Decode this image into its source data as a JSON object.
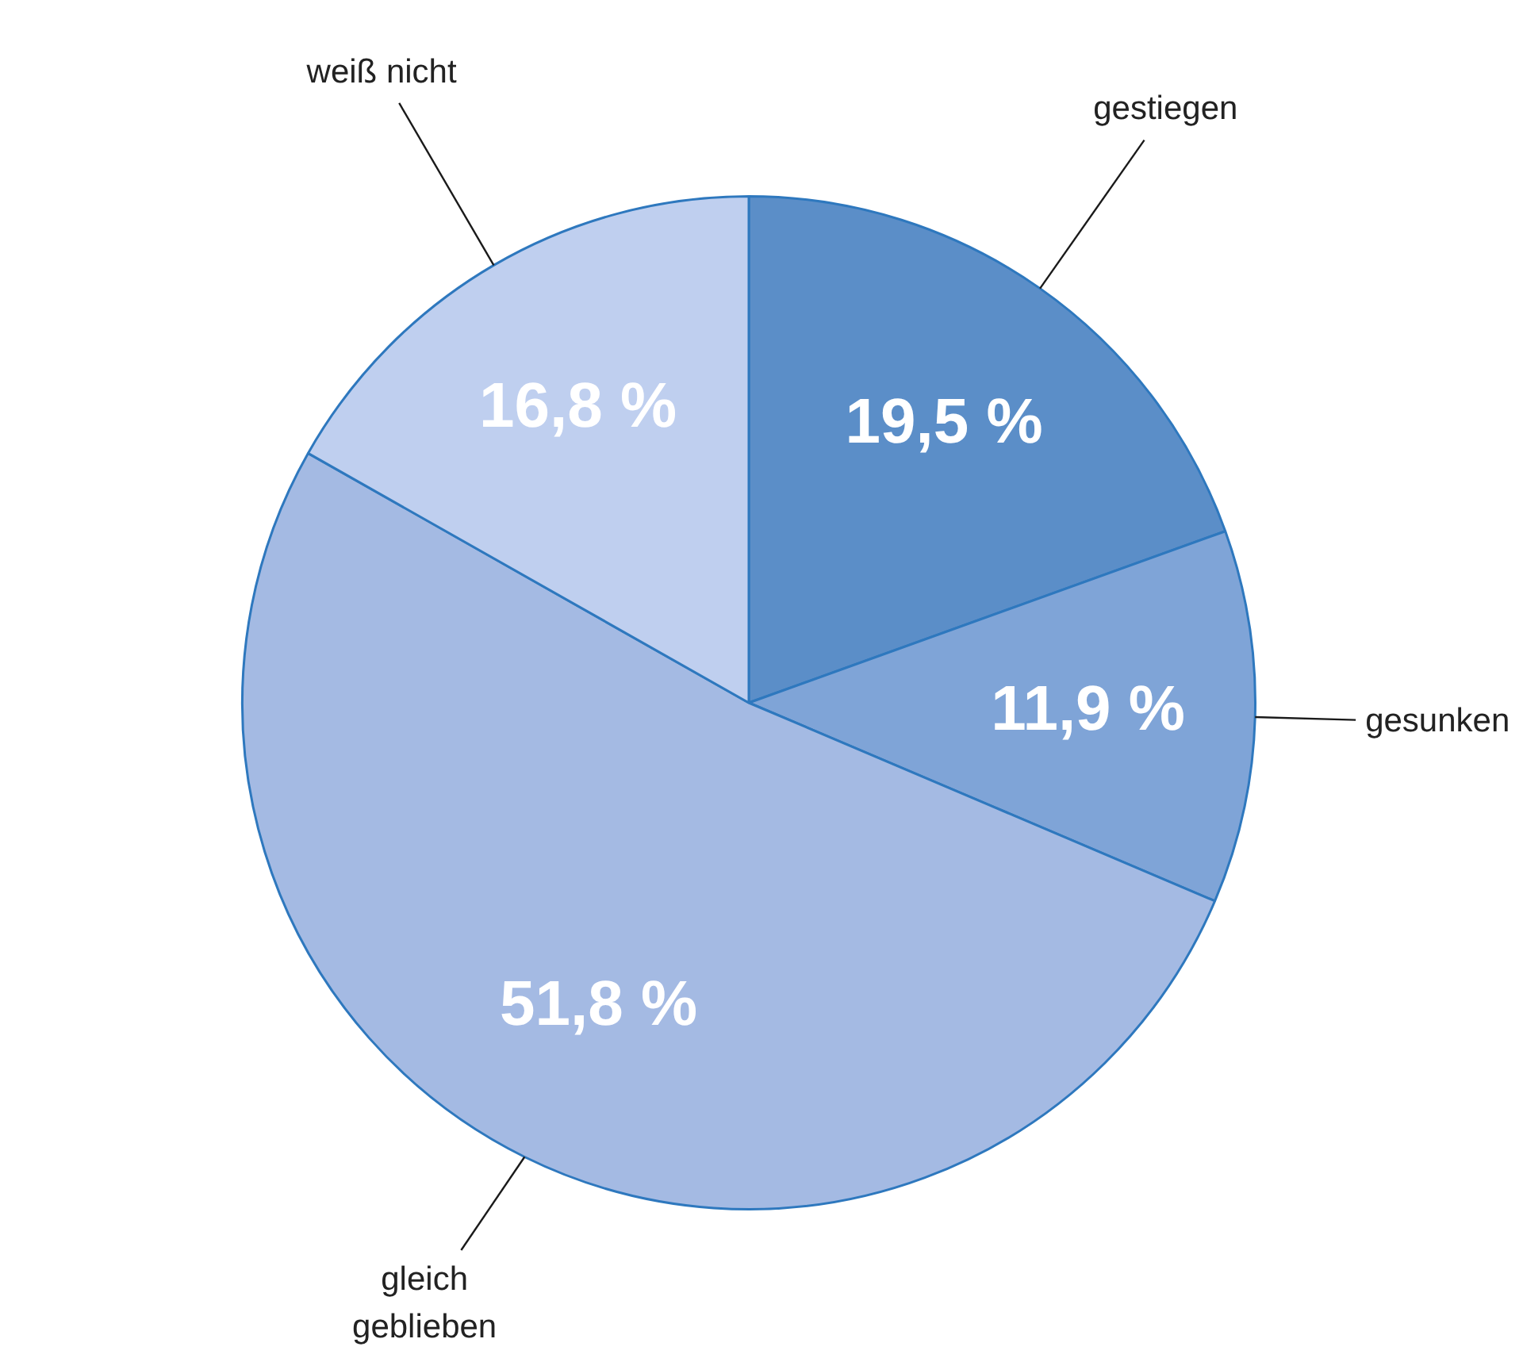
{
  "chart_data": {
    "type": "pie",
    "categories": [
      "gestiegen",
      "gesunken",
      "gleich geblieben",
      "weiß nicht"
    ],
    "values": [
      19.5,
      11.9,
      51.8,
      16.8
    ],
    "colors": [
      "#5b8ec8",
      "#7fa4d7",
      "#a4bae3",
      "#bfcfef"
    ],
    "value_labels": [
      "19,5 %",
      "11,9 %",
      "51,8 %",
      "16,8 %"
    ]
  }
}
